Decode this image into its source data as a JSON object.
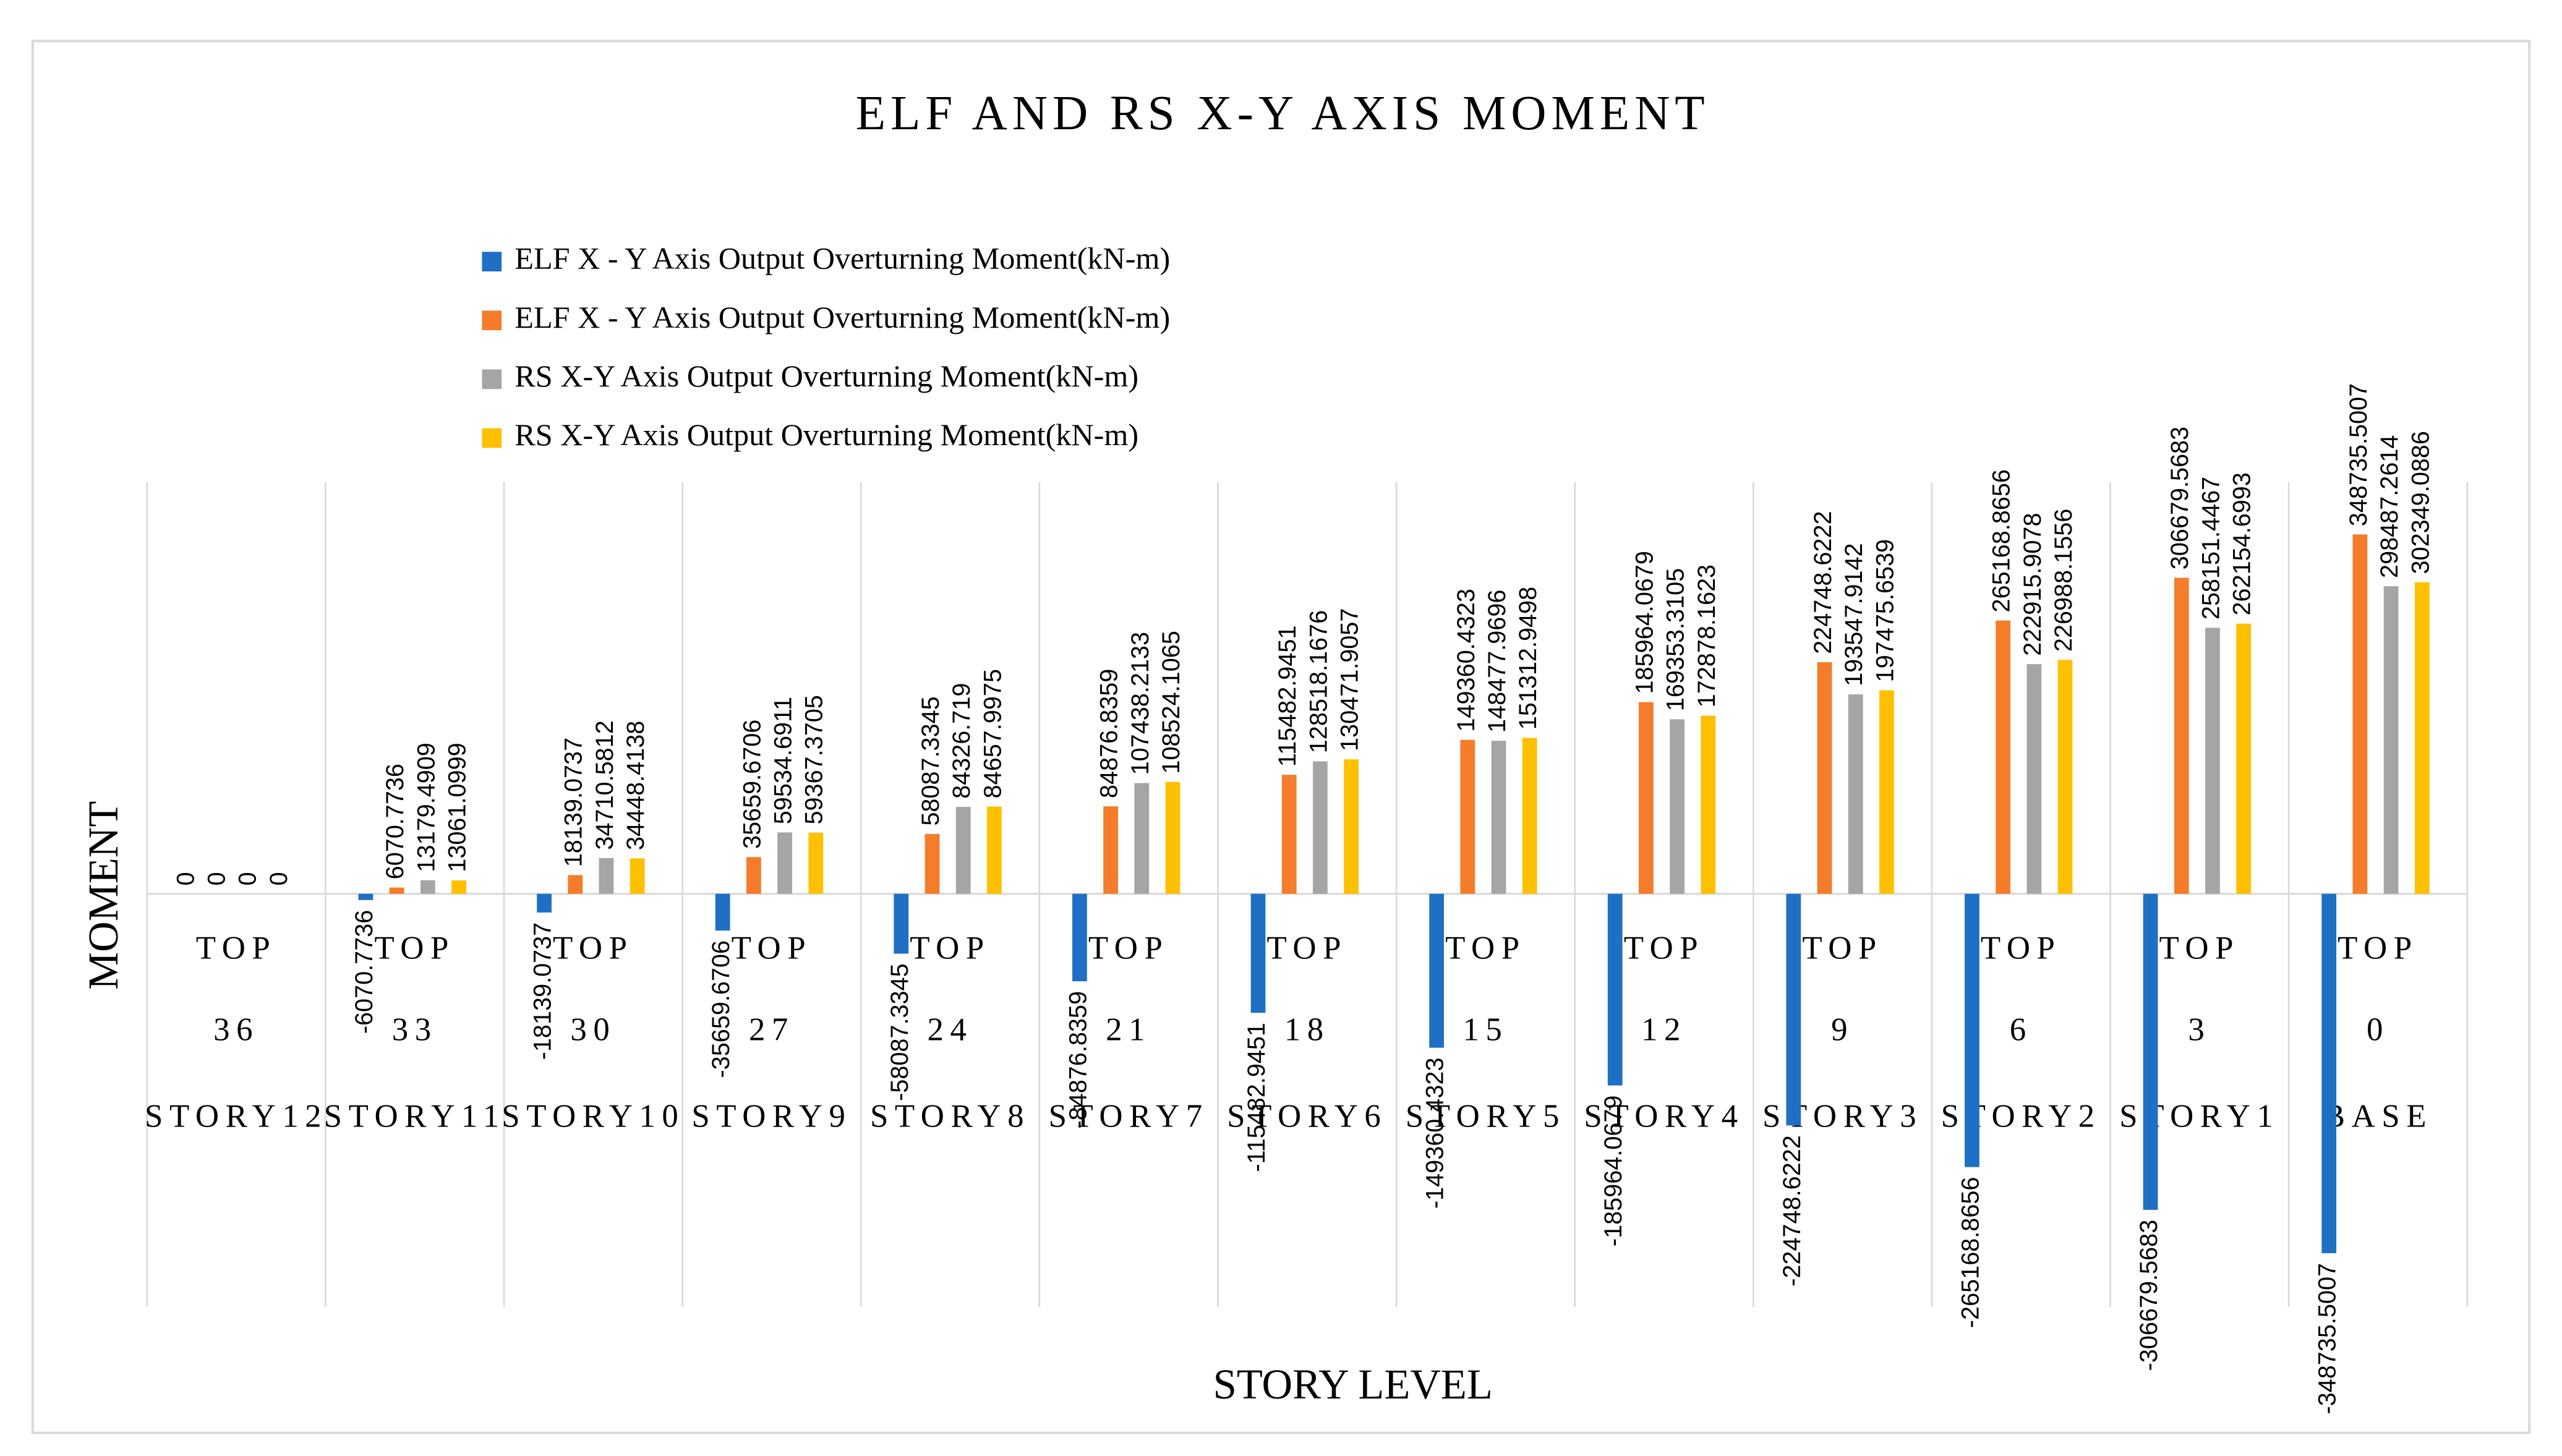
{
  "chart_data": {
    "type": "bar",
    "title": "ELF AND RS X-Y AXIS MOMENT",
    "x_label": "STORY LEVEL",
    "y_label": "MOMENT",
    "categories": [
      [
        "TOP",
        "36",
        "STORY12"
      ],
      [
        "TOP",
        "33",
        "STORY11"
      ],
      [
        "TOP",
        "30",
        "STORY10"
      ],
      [
        "TOP",
        "27",
        "STORY9"
      ],
      [
        "TOP",
        "24",
        "STORY8"
      ],
      [
        "TOP",
        "21",
        "STORY7"
      ],
      [
        "TOP",
        "18",
        "STORY6"
      ],
      [
        "TOP",
        "15",
        "STORY5"
      ],
      [
        "TOP",
        "12",
        "STORY4"
      ],
      [
        "TOP",
        "9",
        "STORY3"
      ],
      [
        "TOP",
        "6",
        "STORY2"
      ],
      [
        "TOP",
        "3",
        "STORY1"
      ],
      [
        "TOP",
        "0",
        "BASE"
      ]
    ],
    "series": [
      {
        "name": "ELF X - Y Axis Output Overturning Moment(kN-m)",
        "color": "#1f6fc5",
        "values": [
          0,
          -6070.7736,
          -18139.0737,
          -35659.6706,
          -58087.3345,
          -84876.8359,
          -115482.9451,
          -149360.4323,
          -185964.0679,
          -224748.6222,
          -265168.8656,
          -306679.5683,
          -348735.5007
        ]
      },
      {
        "name": "ELF X - Y Axis Output Overturning Moment(kN-m)",
        "color": "#f47c2a",
        "values": [
          0,
          6070.7736,
          18139.0737,
          35659.6706,
          58087.3345,
          84876.8359,
          115482.9451,
          149360.4323,
          185964.0679,
          224748.6222,
          265168.8656,
          306679.5683,
          348735.5007
        ]
      },
      {
        "name": "RS X-Y Axis Output Overturning Moment(kN-m)",
        "color": "#a5a5a5",
        "values": [
          0,
          13179.4909,
          34710.5812,
          59534.6911,
          84326.719,
          107438.2133,
          128518.1676,
          148477.9696,
          169353.3105,
          193547.9142,
          222915.9078,
          258151.4467,
          298487.2614
        ]
      },
      {
        "name": "RS X-Y Axis Output Overturning Moment(kN-m)",
        "color": "#ffc000",
        "values": [
          0,
          13061.0999,
          34448.4138,
          59367.3705,
          84657.9975,
          108524.1065,
          130471.9057,
          151312.9498,
          172878.1623,
          197475.6539,
          226988.1556,
          262154.6993,
          302349.0886
        ]
      }
    ],
    "grid": true,
    "legend": "top-left"
  }
}
